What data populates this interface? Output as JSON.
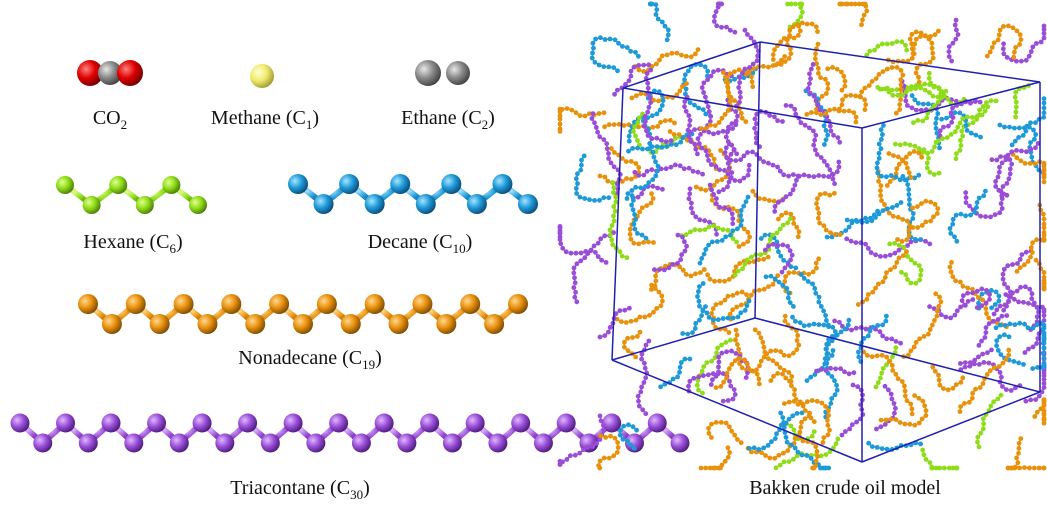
{
  "molecules": [
    {
      "text": "CO",
      "sub": "2",
      "tail": ""
    },
    {
      "text": "Methane (C",
      "sub": "1",
      "tail": ")"
    },
    {
      "text": "Ethane (C",
      "sub": "2",
      "tail": ")"
    },
    {
      "text": "Hexane (C",
      "sub": "6",
      "tail": ")"
    },
    {
      "text": "Decane (C",
      "sub": "10",
      "tail": ")"
    },
    {
      "text": "Nonadecane (C",
      "sub": "19",
      "tail": ")"
    },
    {
      "text": "Triacontane (C",
      "sub": "30",
      "tail": ")"
    }
  ],
  "model_label": "Bakken crude oil model"
}
